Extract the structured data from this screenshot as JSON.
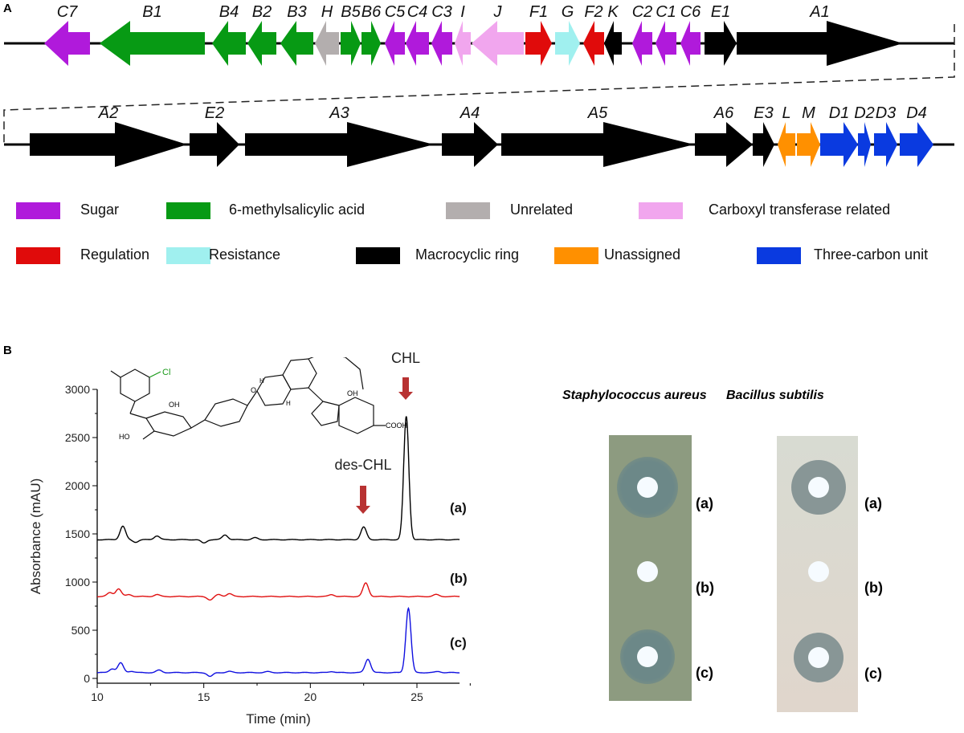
{
  "panel_a": {
    "letter": "A",
    "categories": {
      "sugar": {
        "label": "Sugar",
        "color": "#b01adb"
      },
      "msa": {
        "label": "6-methylsalicylic acid",
        "color": "#079a14"
      },
      "unrelated": {
        "label": "Unrelated",
        "color": "#b3aeae"
      },
      "carboxyl": {
        "label": "Carboxyl transferase related",
        "color": "#f1a6ee"
      },
      "regulation": {
        "label": "Regulation",
        "color": "#e00b0b"
      },
      "resistance": {
        "label": "Resistance",
        "color": "#a0f0ef"
      },
      "macro": {
        "label": "Macrocyclic ring",
        "color": "#000000"
      },
      "unassigned": {
        "label": "Unassigned",
        "color": "#ff9000"
      },
      "three": {
        "label": "Three-carbon unit",
        "color": "#0a3ae0"
      }
    },
    "legend_order": [
      [
        "sugar",
        "msa",
        "unrelated",
        "carboxyl"
      ],
      [
        "regulation",
        "resistance",
        "macro",
        "unassigned",
        "three"
      ]
    ],
    "row1_genes": [
      {
        "name": "C7",
        "cat": "sugar",
        "strand": "-"
      },
      {
        "name": "B1",
        "cat": "msa",
        "strand": "-"
      },
      {
        "name": "B4",
        "cat": "msa",
        "strand": "-"
      },
      {
        "name": "B2",
        "cat": "msa",
        "strand": "-"
      },
      {
        "name": "B3",
        "cat": "msa",
        "strand": "-"
      },
      {
        "name": "H",
        "cat": "unrelated",
        "strand": "-"
      },
      {
        "name": "B5",
        "cat": "msa",
        "strand": "+"
      },
      {
        "name": "B6",
        "cat": "msa",
        "strand": "+"
      },
      {
        "name": "C5",
        "cat": "sugar",
        "strand": "-"
      },
      {
        "name": "C4",
        "cat": "sugar",
        "strand": "-"
      },
      {
        "name": "C3",
        "cat": "sugar",
        "strand": "-"
      },
      {
        "name": "I",
        "cat": "carboxyl",
        "strand": "-"
      },
      {
        "name": "J",
        "cat": "carboxyl",
        "strand": "-"
      },
      {
        "name": "F1",
        "cat": "regulation",
        "strand": "+"
      },
      {
        "name": "G",
        "cat": "resistance",
        "strand": "+"
      },
      {
        "name": "F2",
        "cat": "regulation",
        "strand": "-"
      },
      {
        "name": "K",
        "cat": "macro",
        "strand": "-"
      },
      {
        "name": "C2",
        "cat": "sugar",
        "strand": "-"
      },
      {
        "name": "C1",
        "cat": "sugar",
        "strand": "-"
      },
      {
        "name": "C6",
        "cat": "sugar",
        "strand": "-"
      },
      {
        "name": "E1",
        "cat": "macro",
        "strand": "+"
      },
      {
        "name": "A1",
        "cat": "macro",
        "strand": "+"
      }
    ],
    "row2_genes": [
      {
        "name": "A2",
        "cat": "macro",
        "strand": "+"
      },
      {
        "name": "E2",
        "cat": "macro",
        "strand": "+"
      },
      {
        "name": "A3",
        "cat": "macro",
        "strand": "+"
      },
      {
        "name": "A4",
        "cat": "macro",
        "strand": "+"
      },
      {
        "name": "A5",
        "cat": "macro",
        "strand": "+"
      },
      {
        "name": "A6",
        "cat": "macro",
        "strand": "+"
      },
      {
        "name": "E3",
        "cat": "macro",
        "strand": "+"
      },
      {
        "name": "L",
        "cat": "unassigned",
        "strand": "-"
      },
      {
        "name": "M",
        "cat": "unassigned",
        "strand": "+"
      },
      {
        "name": "D1",
        "cat": "three",
        "strand": "+"
      },
      {
        "name": "D2",
        "cat": "three",
        "strand": "+"
      },
      {
        "name": "D3",
        "cat": "three",
        "strand": "+"
      },
      {
        "name": "D4",
        "cat": "three",
        "strand": "+"
      }
    ]
  },
  "panel_b": {
    "letter": "B",
    "structure_labels": {
      "cl": "Cl",
      "oh1": "OH",
      "oh2": "OH",
      "ho": "HO",
      "cooh": "COOH",
      "h1": "H",
      "h2": "H",
      "o": "O"
    },
    "chart_data": {
      "type": "line",
      "xlabel": "Time (min)",
      "ylabel": "Absorbance  (mAU)",
      "xlim": [
        10,
        27
      ],
      "ylim": [
        -50,
        3000
      ],
      "xticks": [
        10,
        15,
        20,
        25
      ],
      "yticks": [
        0,
        500,
        1000,
        1500,
        2000,
        2500,
        3000
      ],
      "grid": false,
      "series": [
        {
          "name": "(a)",
          "color": "#000000",
          "baseline": 1440,
          "peaks": [
            [
              11.2,
              1580
            ],
            [
              11.8,
              1415
            ],
            [
              12.8,
              1480
            ],
            [
              15.0,
              1405
            ],
            [
              16.0,
              1490
            ],
            [
              17.4,
              1460
            ],
            [
              22.5,
              1570
            ],
            [
              24.5,
              2720
            ]
          ]
        },
        {
          "name": "(b)",
          "color": "#e01010",
          "baseline": 850,
          "peaks": [
            [
              10.6,
              890
            ],
            [
              11.0,
              930
            ],
            [
              11.5,
              870
            ],
            [
              12.8,
              870
            ],
            [
              15.3,
              815
            ],
            [
              15.7,
              870
            ],
            [
              16.2,
              880
            ],
            [
              21.0,
              870
            ],
            [
              22.6,
              990
            ],
            [
              25.9,
              870
            ]
          ]
        },
        {
          "name": "(c)",
          "color": "#1010e0",
          "baseline": 60,
          "peaks": [
            [
              10.7,
              100
            ],
            [
              11.1,
              160
            ],
            [
              11.6,
              75
            ],
            [
              12.9,
              85
            ],
            [
              15.3,
              20
            ],
            [
              16.2,
              72
            ],
            [
              18.0,
              70
            ],
            [
              21.0,
              72
            ],
            [
              22.7,
              200
            ],
            [
              24.6,
              730
            ],
            [
              26.0,
              72
            ]
          ]
        }
      ],
      "annotations": [
        {
          "label": "des-CHL",
          "x": 22.5,
          "arrow_color": "#b83232"
        },
        {
          "label": "CHL",
          "x": 24.5,
          "arrow_color": "#b83232"
        }
      ]
    },
    "plates": [
      {
        "title": "Staphylococcus aureus",
        "bg": "#8d9b80",
        "zone": "#6c8888",
        "labels": [
          "(a)",
          "(b)",
          "(c)"
        ],
        "inhibition": [
          true,
          false,
          true
        ]
      },
      {
        "title": "Bacillus subtilis",
        "bg": "#d9d9cd",
        "zone": "#889696",
        "labels": [
          "(a)",
          "(b)",
          "(c)"
        ],
        "inhibition": [
          true,
          false,
          true
        ]
      }
    ]
  }
}
